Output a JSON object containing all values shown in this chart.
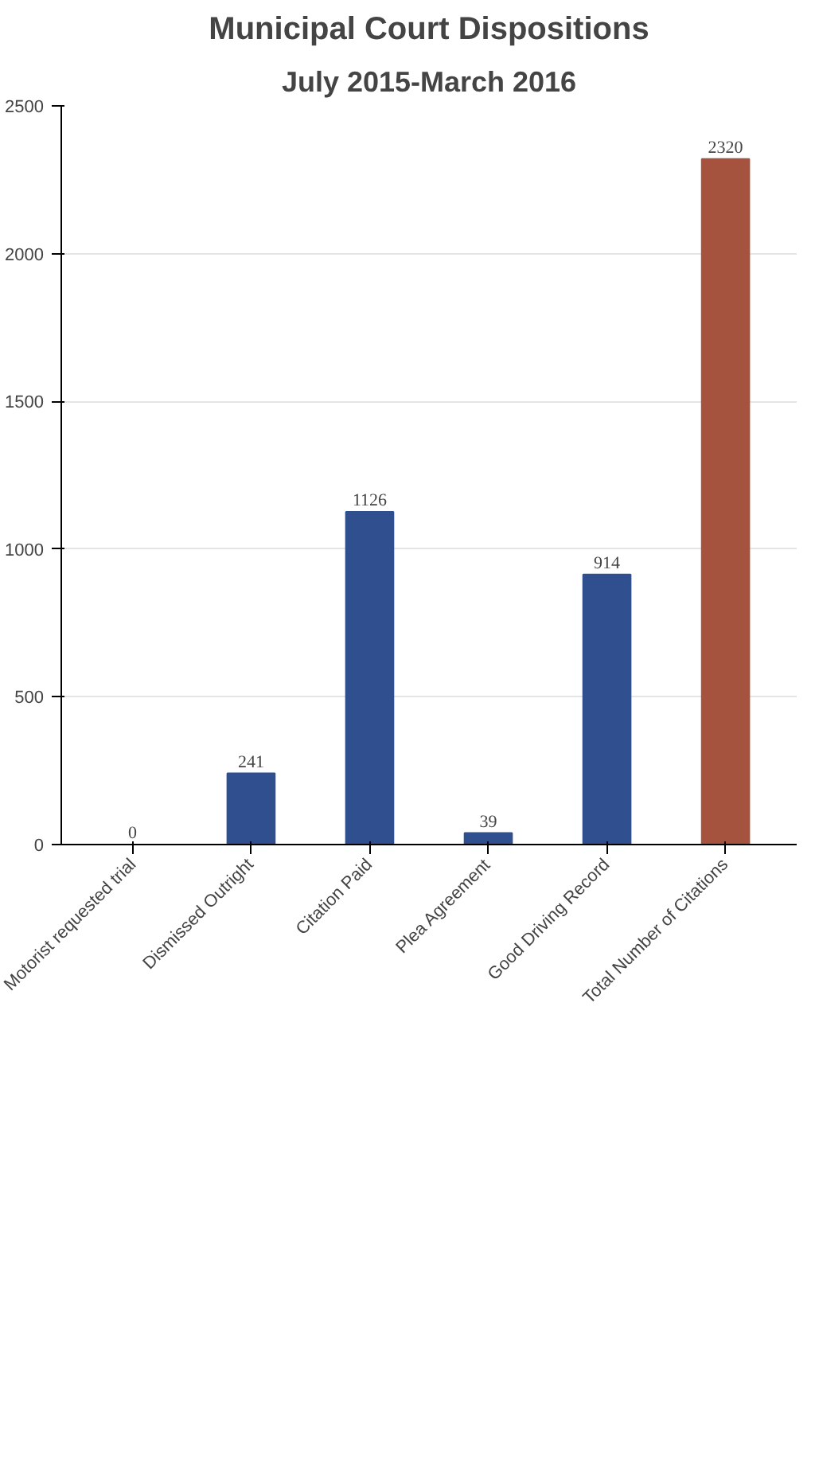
{
  "chart_data": {
    "type": "bar",
    "title": "Municipal Court Dispositions",
    "subtitle": "July 2015-March 2016",
    "categories": [
      "Motorist requested trial",
      "Dismissed Outright",
      "Citation Paid",
      "Plea Agreement",
      "Good Driving Record",
      "Total Number of Citations"
    ],
    "values": [
      0,
      241,
      1126,
      39,
      914,
      2320
    ],
    "colors": [
      "#2f4f8f",
      "#2f4f8f",
      "#2f4f8f",
      "#2f4f8f",
      "#2f4f8f",
      "#a5533f"
    ],
    "ylim": [
      0,
      2500
    ],
    "yticks": [
      0,
      500,
      1000,
      1500,
      2000,
      2500
    ],
    "grid": "y",
    "data_labels": true
  }
}
